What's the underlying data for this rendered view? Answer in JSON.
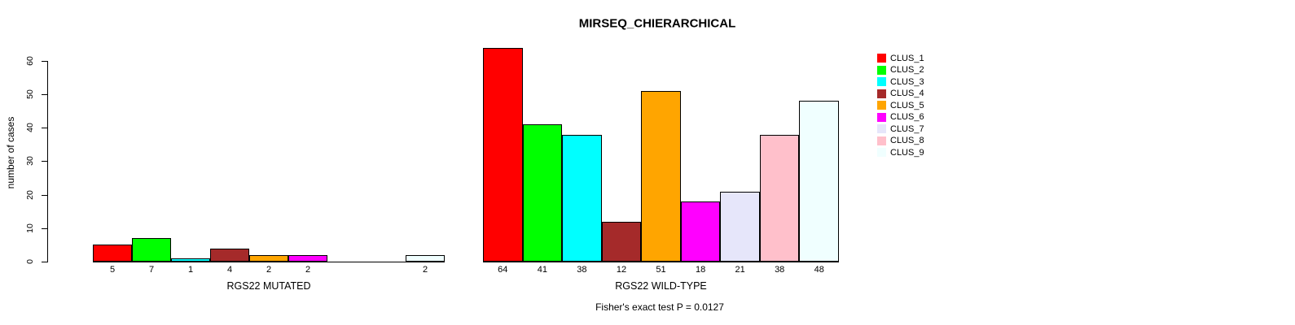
{
  "title": "MIRSEQ_CHIERARCHICAL",
  "footer": "Fisher's exact test P = 0.0127",
  "chart_data": {
    "type": "bar",
    "title": "MIRSEQ_CHIERARCHICAL",
    "ylabel": "number of cases",
    "ylim": [
      0,
      60
    ],
    "yticks": [
      0,
      10,
      20,
      30,
      40,
      50,
      60
    ],
    "grid": false,
    "legend_position": "right",
    "categories": [
      "CLUS_1",
      "CLUS_2",
      "CLUS_3",
      "CLUS_4",
      "CLUS_5",
      "CLUS_6",
      "CLUS_7",
      "CLUS_8",
      "CLUS_9"
    ],
    "colors": [
      "#FF0000",
      "#00FF00",
      "#00FFFF",
      "#A52A2A",
      "#FFA500",
      "#FF00FF",
      "#E6E6FA",
      "#FFC0CB",
      "#F0FFFF"
    ],
    "panels": [
      {
        "xlabel": "RGS22 MUTATED",
        "values": [
          5,
          7,
          1,
          4,
          2,
          2,
          0,
          0,
          2
        ],
        "bar_labels": [
          "5",
          "7",
          "1",
          "4",
          "2",
          "2",
          "",
          "",
          "2"
        ]
      },
      {
        "xlabel": "RGS22 WILD-TYPE",
        "values": [
          64,
          41,
          38,
          12,
          51,
          18,
          21,
          38,
          48
        ],
        "bar_labels": [
          "64",
          "41",
          "38",
          "12",
          "51",
          "18",
          "21",
          "38",
          "48"
        ]
      }
    ],
    "annotation": "Fisher's exact test P = 0.0127"
  }
}
